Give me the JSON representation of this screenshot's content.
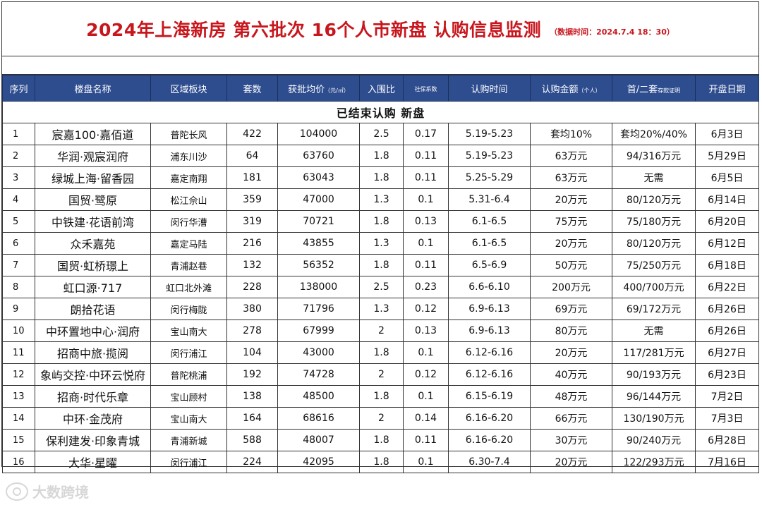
{
  "title": "2024年上海新房 第六批次 16个人市新盘 认购信息监测",
  "note": "（数据时间：2024.7.4 18：30）",
  "headers": [
    {
      "label": "序列",
      "small": ""
    },
    {
      "label": "楼盘名称",
      "small": ""
    },
    {
      "label": "区域板块",
      "small": ""
    },
    {
      "label": "套数",
      "small": ""
    },
    {
      "label": "获批均价",
      "small": "（元/㎡）"
    },
    {
      "label": "入围比",
      "small": ""
    },
    {
      "label": "",
      "small": "社保系数"
    },
    {
      "label": "认购时间",
      "small": ""
    },
    {
      "label": "认购金额",
      "small": "（个人）"
    },
    {
      "label": "首/二套",
      "small": "存款证明"
    },
    {
      "label": "开盘日期",
      "small": ""
    }
  ],
  "section_label": "已结束认购 新盘",
  "rows": [
    {
      "idx": "1",
      "name": "宸嘉100·嘉佰道",
      "area": "普陀长风",
      "units": "422",
      "price": "104000",
      "ratio": "2.5",
      "social": "0.17",
      "time": "5.19-5.23",
      "amount": "套均10%",
      "deposit": "套均20%/40%",
      "open": "6月3日"
    },
    {
      "idx": "2",
      "name": "华润·观宸润府",
      "area": "浦东川沙",
      "units": "64",
      "price": "63760",
      "ratio": "1.8",
      "social": "0.11",
      "time": "5.19-5.23",
      "amount": "63万元",
      "deposit": "94/316万元",
      "open": "5月29日"
    },
    {
      "idx": "3",
      "name": "绿城上海·留香园",
      "area": "嘉定南翔",
      "units": "181",
      "price": "63043",
      "ratio": "1.8",
      "social": "0.11",
      "time": "5.25-5.29",
      "amount": "63万元",
      "deposit": "无需",
      "open": "6月5日"
    },
    {
      "idx": "4",
      "name": "国贸·鹭原",
      "area": "松江佘山",
      "units": "359",
      "price": "47000",
      "ratio": "1.3",
      "social": "0.1",
      "time": "5.31-6.4",
      "amount": "20万元",
      "deposit": "80/120万元",
      "open": "6月14日"
    },
    {
      "idx": "5",
      "name": "中铁建·花语前湾",
      "area": "闵行华漕",
      "units": "319",
      "price": "70721",
      "ratio": "1.8",
      "social": "0.13",
      "time": "6.1-6.5",
      "amount": "75万元",
      "deposit": "75/180万元",
      "open": "6月20日"
    },
    {
      "idx": "6",
      "name": "众禾嘉苑",
      "area": "嘉定马陆",
      "units": "216",
      "price": "43855",
      "ratio": "1.3",
      "social": "0.1",
      "time": "6.1-6.5",
      "amount": "20万元",
      "deposit": "80/120万元",
      "open": "6月12日"
    },
    {
      "idx": "7",
      "name": "国贸·虹桥璟上",
      "area": "青浦赵巷",
      "units": "132",
      "price": "56352",
      "ratio": "1.8",
      "social": "0.11",
      "time": "6.5-6.9",
      "amount": "50万元",
      "deposit": "75/250万元",
      "open": "6月18日"
    },
    {
      "idx": "8",
      "name": "虹口源·717",
      "area": "虹口北外滩",
      "units": "228",
      "price": "138000",
      "ratio": "2.5",
      "social": "0.23",
      "time": "6.6-6.10",
      "amount": "200万元",
      "deposit": "400/700万元",
      "open": "6月22日"
    },
    {
      "idx": "9",
      "name": "朗拾花语",
      "area": "闵行梅陇",
      "units": "380",
      "price": "71796",
      "ratio": "1.3",
      "social": "0.12",
      "time": "6.9-6.13",
      "amount": "69万元",
      "deposit": "69/172万元",
      "open": "6月26日"
    },
    {
      "idx": "10",
      "name": "中环置地中心·润府",
      "area": "宝山南大",
      "units": "278",
      "price": "67999",
      "ratio": "2",
      "social": "0.13",
      "time": "6.9-6.13",
      "amount": "80万元",
      "deposit": "无需",
      "open": "6月26日"
    },
    {
      "idx": "11",
      "name": "招商中旅·揽阅",
      "area": "闵行浦江",
      "units": "104",
      "price": "43000",
      "ratio": "1.8",
      "social": "0.1",
      "time": "6.12-6.16",
      "amount": "20万元",
      "deposit": "117/281万元",
      "open": "6月27日"
    },
    {
      "idx": "12",
      "name": "象屿交控·中环云悦府",
      "area": "普陀桃浦",
      "units": "192",
      "price": "74728",
      "ratio": "2",
      "social": "0.12",
      "time": "6.12-6.16",
      "amount": "40万元",
      "deposit": "90/193万元",
      "open": "6月23日"
    },
    {
      "idx": "13",
      "name": "招商·时代乐章",
      "area": "宝山顾村",
      "units": "138",
      "price": "48500",
      "ratio": "1.8",
      "social": "0.1",
      "time": "6.15-6.19",
      "amount": "48万元",
      "deposit": "96/144万元",
      "open": "7月2日"
    },
    {
      "idx": "14",
      "name": "中环·金茂府",
      "area": "宝山南大",
      "units": "164",
      "price": "68616",
      "ratio": "2",
      "social": "0.14",
      "time": "6.16-6.20",
      "amount": "66万元",
      "deposit": "130/190万元",
      "open": "7月3日"
    },
    {
      "idx": "15",
      "name": "保利建发·印象青城",
      "area": "青浦新城",
      "units": "588",
      "price": "48007",
      "ratio": "1.8",
      "social": "0.11",
      "time": "6.16-6.20",
      "amount": "30万元",
      "deposit": "90/240万元",
      "open": "6月28日"
    },
    {
      "idx": "16",
      "name": "大华·星曜",
      "area": "闵行浦江",
      "units": "224",
      "price": "42095",
      "ratio": "1.8",
      "social": "0.1",
      "time": "6.30-7.4",
      "amount": "20万元",
      "deposit": "122/293万元",
      "open": "7月16日"
    }
  ],
  "watermark": "大数跨境",
  "colors": {
    "title": "#c8161d",
    "header_bg": "#2e4d8f",
    "header_text": "#ffffff"
  }
}
